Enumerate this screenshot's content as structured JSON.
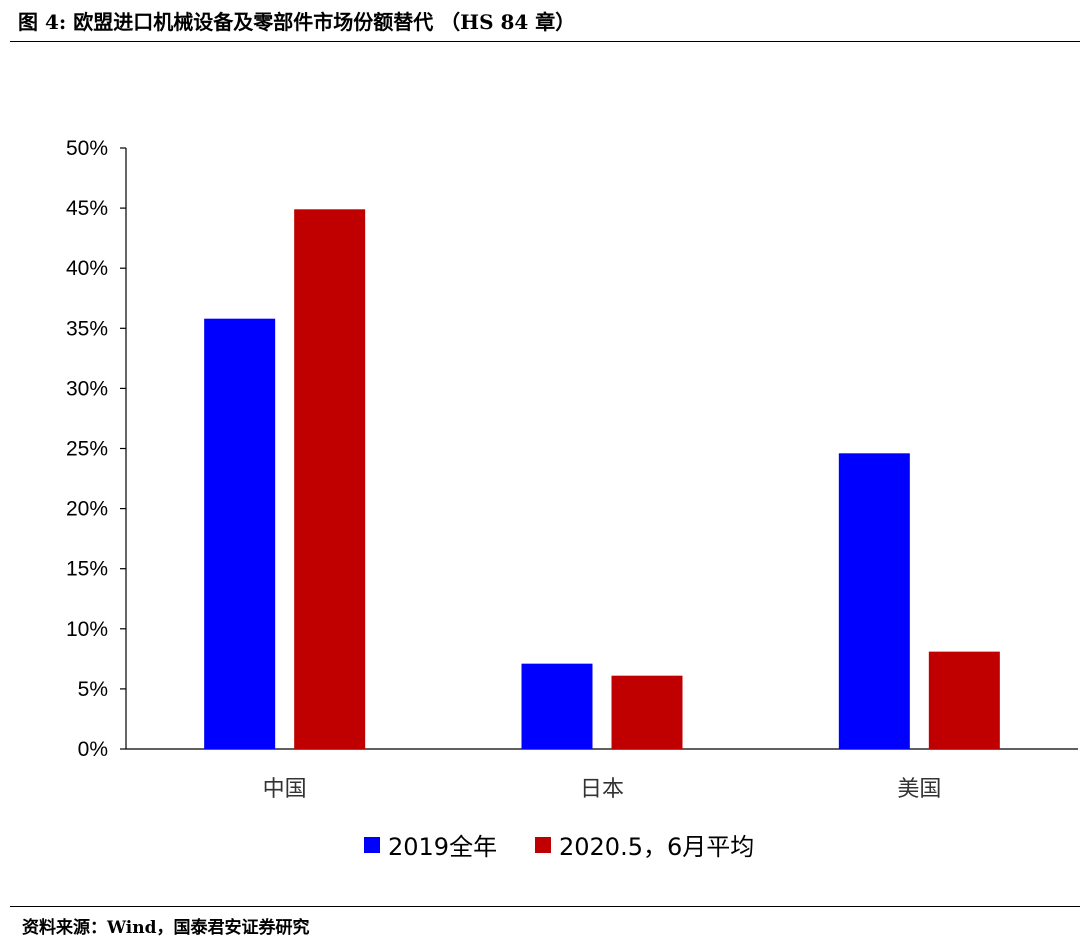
{
  "header": {
    "title": "图 4: 欧盟进口机械设备及零部件市场份额替代 （HS 84 章）"
  },
  "footer": {
    "source": "资料来源：Wind，国泰君安证券研究"
  },
  "chart_data": {
    "type": "bar",
    "categories": [
      "中国",
      "日本",
      "美国"
    ],
    "series": [
      {
        "name": "2019全年",
        "values": [
          35.8,
          7.1,
          24.6
        ],
        "color": "#0000FF"
      },
      {
        "name": "2020.5，6月平均",
        "values": [
          44.9,
          6.1,
          8.1
        ],
        "color": "#C00000"
      }
    ],
    "yticks": [
      "0%",
      "5%",
      "10%",
      "15%",
      "20%",
      "25%",
      "30%",
      "35%",
      "40%",
      "45%",
      "50%"
    ],
    "ylim": [
      0,
      50
    ],
    "grid": false,
    "legend_position": "bottom"
  }
}
